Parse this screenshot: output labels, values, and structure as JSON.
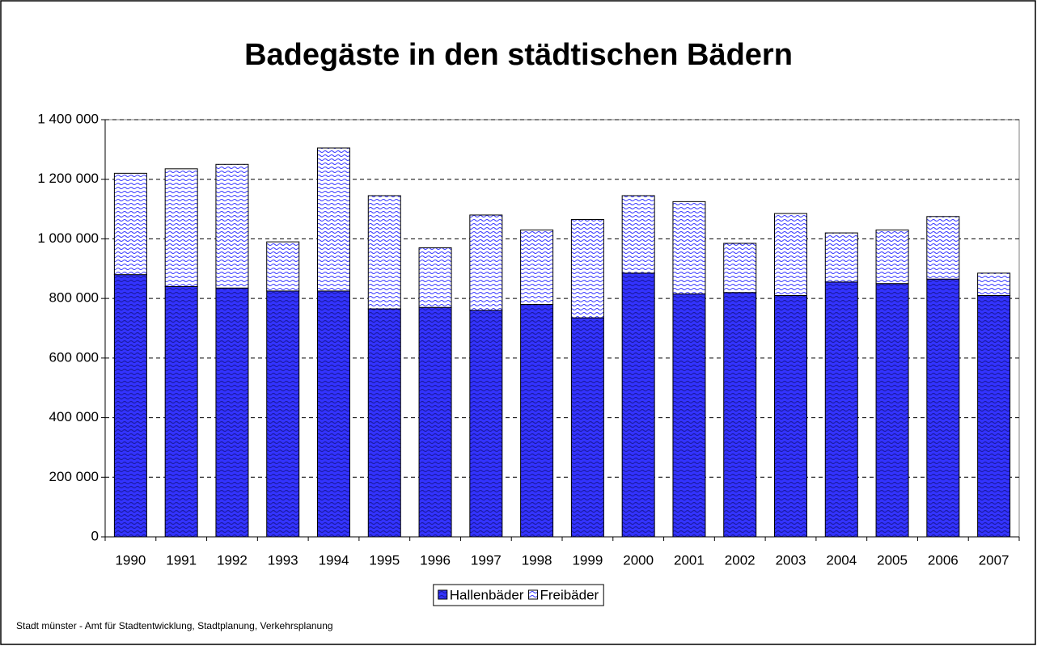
{
  "chart_data": {
    "type": "stacked_bar",
    "title": "Badegäste in den städtischen Bädern",
    "source": "Stadt münster - Amt für Stadtentwicklung, Stadtplanung, Verkehrsplanung",
    "categories": [
      "1990",
      "1991",
      "1992",
      "1993",
      "1994",
      "1995",
      "1996",
      "1997",
      "1998",
      "1999",
      "2000",
      "2001",
      "2002",
      "2003",
      "2004",
      "2005",
      "2006",
      "2007"
    ],
    "series": [
      {
        "name": "Hallenbäder",
        "color": "#3333ff",
        "values": [
          880000,
          840000,
          835000,
          825000,
          825000,
          765000,
          770000,
          760000,
          780000,
          735000,
          885000,
          815000,
          820000,
          810000,
          855000,
          850000,
          865000,
          810000
        ]
      },
      {
        "name": "Freibäder",
        "color": "#3333ff",
        "values": [
          340000,
          395000,
          415000,
          165000,
          480000,
          380000,
          200000,
          320000,
          250000,
          330000,
          260000,
          310000,
          165000,
          275000,
          165000,
          180000,
          210000,
          75000
        ]
      }
    ],
    "ylim": [
      0,
      1400000
    ],
    "yticks": [
      0,
      {
        "value": 200000,
        "label": "200 000"
      },
      {
        "value": 400000,
        "label": "400 000"
      },
      {
        "value": 600000,
        "label": "600 000"
      },
      {
        "value": 800000,
        "label": "800 000"
      },
      {
        "value": 1000000,
        "label": "1 000 000"
      },
      {
        "value": 1200000,
        "label": "1 200 000"
      },
      {
        "value": 1400000,
        "label": "1 400 000"
      }
    ],
    "grid": true,
    "legend": "bottom"
  }
}
